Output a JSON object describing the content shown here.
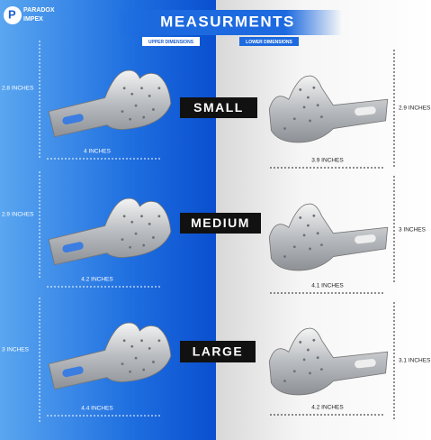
{
  "brand": {
    "name": "PARADOX",
    "sub": "IMPEX"
  },
  "header": {
    "title": "MEASURMENTS",
    "upper_tag": "UPPER DIMENSIONS",
    "lower_tag": "LOWER DIMENSIONS"
  },
  "sizes": [
    {
      "name": "SMALL",
      "upper": {
        "height": "2.8 INCHES",
        "width": "4 INCHES"
      },
      "lower": {
        "height": "2.9 INCHES",
        "width": "3.9 INCHES"
      }
    },
    {
      "name": "MEDIUM",
      "upper": {
        "height": "2.9 INCHES",
        "width": "4.2 INCHES"
      },
      "lower": {
        "height": "3 INCHES",
        "width": "4.1 INCHES"
      }
    },
    {
      "name": "LARGE",
      "upper": {
        "height": "3 INCHES",
        "width": "4.4 INCHES"
      },
      "lower": {
        "height": "3.1 INCHES",
        "width": "4.2 INCHES"
      }
    }
  ]
}
